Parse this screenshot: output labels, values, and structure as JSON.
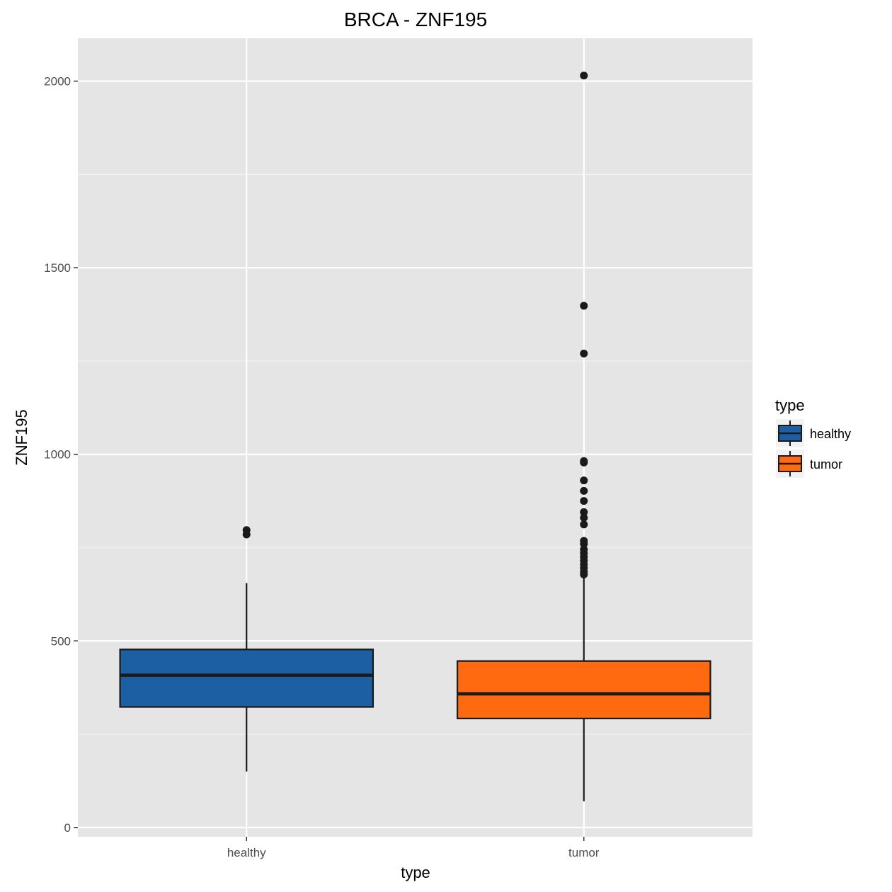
{
  "chart_data": {
    "type": "boxplot",
    "title": "BRCA - ZNF195",
    "xlabel": "type",
    "ylabel": "ZNF195",
    "ylim": [
      -25,
      2115
    ],
    "yticks": [
      0,
      500,
      1000,
      1500,
      2000
    ],
    "categories": [
      "healthy",
      "tumor"
    ],
    "grid": true,
    "legend": {
      "title": "type",
      "position": "right"
    },
    "series": [
      {
        "name": "healthy",
        "color": "#1c5fa3",
        "whisker_low": 150,
        "q1": 323,
        "median": 408,
        "q3": 477,
        "whisker_high": 655,
        "outliers": [
          785,
          797
        ]
      },
      {
        "name": "tumor",
        "color": "#ff6a10",
        "whisker_low": 70,
        "q1": 292,
        "median": 358,
        "q3": 446,
        "whisker_high": 670,
        "outliers": [
          678,
          685,
          695,
          705,
          715,
          725,
          735,
          745,
          760,
          768,
          812,
          830,
          845,
          875,
          902,
          930,
          978,
          982,
          1270,
          1398,
          2015
        ]
      }
    ]
  }
}
